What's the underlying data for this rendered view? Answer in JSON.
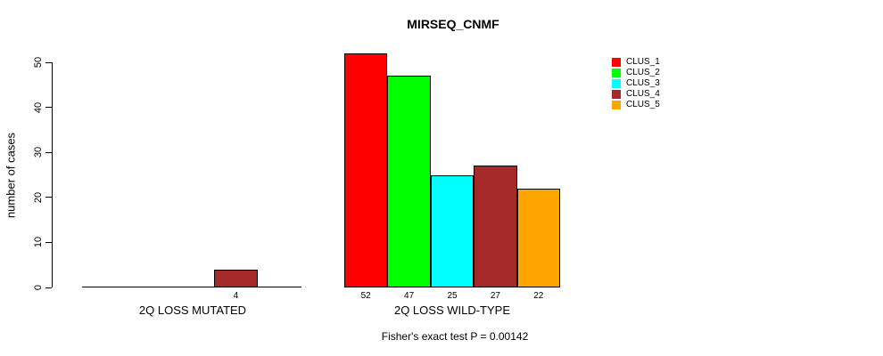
{
  "title": "MIRSEQ_CNMF",
  "chart_data": {
    "type": "bar",
    "title": "MIRSEQ_CNMF",
    "ylabel": "number of cases",
    "ylim": [
      0,
      50
    ],
    "yticks": [
      0,
      10,
      20,
      30,
      40,
      50
    ],
    "categories": [
      "2Q LOSS MUTATED",
      "2Q LOSS WILD-TYPE"
    ],
    "series": [
      {
        "name": "CLUS_1",
        "color": "#FF0000",
        "values": [
          0,
          52
        ]
      },
      {
        "name": "CLUS_2",
        "color": "#00FF00",
        "values": [
          0,
          47
        ]
      },
      {
        "name": "CLUS_3",
        "color": "#00FFFF",
        "values": [
          0,
          25
        ]
      },
      {
        "name": "CLUS_4",
        "color": "#A52A2A",
        "values": [
          4,
          27
        ]
      },
      {
        "name": "CLUS_5",
        "color": "#FFA500",
        "values": [
          0,
          22
        ]
      }
    ],
    "bar_labels": [
      [
        "",
        "",
        "",
        "4",
        ""
      ],
      [
        "52",
        "47",
        "25",
        "27",
        "22"
      ]
    ],
    "annotation": "Fisher's exact test P = 0.00142",
    "legend_position": "top-right",
    "legend_entries": [
      "CLUS_1",
      "CLUS_2",
      "CLUS_3",
      "CLUS_4",
      "CLUS_5"
    ],
    "grid": false,
    "background": "#FFFFFF"
  }
}
